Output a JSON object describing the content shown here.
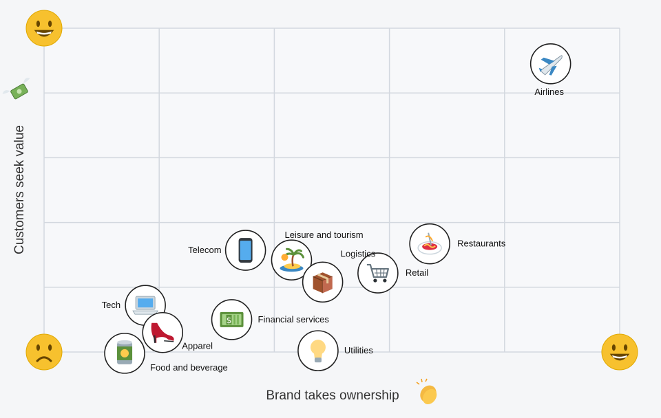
{
  "chart_data": {
    "type": "scatter",
    "xlabel": "Brand takes ownership",
    "ylabel": "Customers seek value",
    "xlim": [
      0,
      5
    ],
    "ylim": [
      0,
      5
    ],
    "grid": true,
    "points": [
      {
        "label": "Airlines",
        "x": 4.4,
        "y": 4.45,
        "icon": "airplane-icon"
      },
      {
        "label": "Restaurants",
        "x": 3.35,
        "y": 1.67,
        "icon": "spaghetti-icon"
      },
      {
        "label": "Retail",
        "x": 2.9,
        "y": 1.22,
        "icon": "shopping-cart-icon"
      },
      {
        "label": "Leisure and tourism",
        "x": 2.15,
        "y": 1.42,
        "icon": "desert-island-icon"
      },
      {
        "label": "Logistics",
        "x": 2.42,
        "y": 1.08,
        "icon": "package-icon"
      },
      {
        "label": "Telecom",
        "x": 1.75,
        "y": 1.57,
        "icon": "mobile-phone-icon"
      },
      {
        "label": "Financial services",
        "x": 1.63,
        "y": 0.5,
        "icon": "dollar-banknote-icon"
      },
      {
        "label": "Tech",
        "x": 0.88,
        "y": 0.72,
        "icon": "laptop-icon"
      },
      {
        "label": "Apparel",
        "x": 1.03,
        "y": 0.3,
        "icon": "high-heel-icon"
      },
      {
        "label": "Food and beverage",
        "x": 0.7,
        "y": -0.02,
        "icon": "canned-food-icon"
      },
      {
        "label": "Utilities",
        "x": 2.38,
        "y": 0.02,
        "icon": "light-bulb-icon"
      }
    ],
    "corner_icons": [
      {
        "name": "grinning-face-top-icon",
        "glyph": "😃"
      },
      {
        "name": "frowning-face-origin-icon",
        "glyph": "☹"
      },
      {
        "name": "grinning-face-right-icon",
        "glyph": "😃"
      }
    ],
    "axis_icons": {
      "y": "money-with-wings-icon",
      "x": "clapping-hands-icon"
    },
    "colors": {
      "grid": "#d3d8df",
      "plot_background": "#f7f8fa",
      "emoji_yellow": "#f7c12e"
    }
  }
}
